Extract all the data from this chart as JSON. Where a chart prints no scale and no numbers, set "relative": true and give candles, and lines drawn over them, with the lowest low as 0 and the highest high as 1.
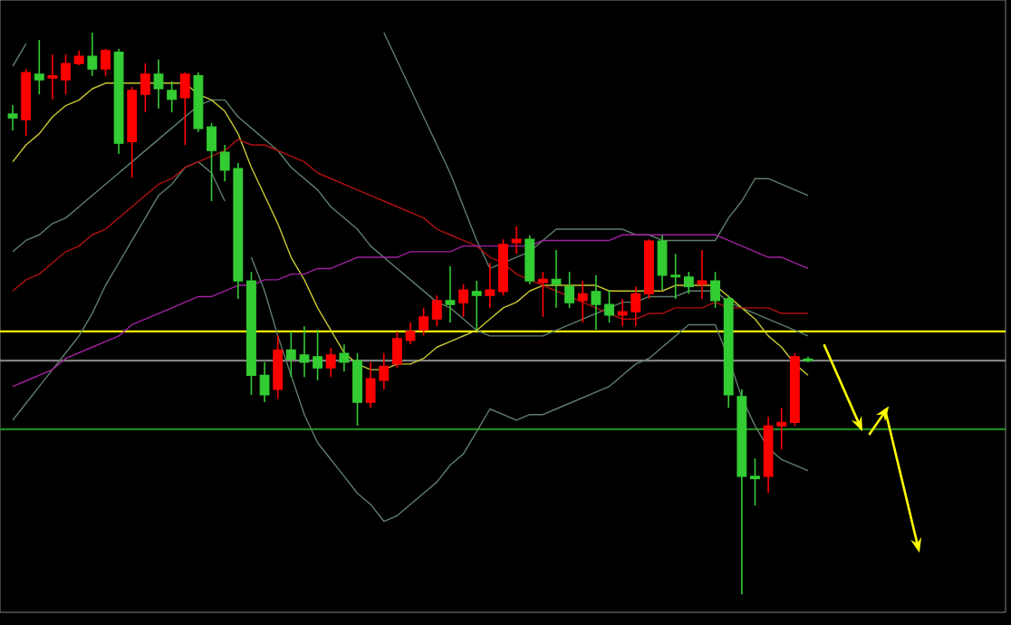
{
  "chart_data": {
    "type": "candlestick",
    "relative": true,
    "categories": [
      null,
      null,
      null,
      null,
      null,
      null,
      null,
      null,
      null,
      null,
      null,
      null,
      null,
      null,
      null,
      null,
      null,
      null,
      null,
      null,
      null,
      null,
      null,
      null,
      null,
      null,
      null,
      null,
      null,
      null,
      null,
      null,
      null,
      null,
      null,
      null,
      null,
      null,
      null,
      null,
      null,
      null,
      null,
      null,
      null,
      null,
      null,
      null,
      null,
      null,
      null,
      null,
      null,
      null,
      null,
      null,
      null,
      null,
      null,
      null,
      null
    ],
    "ohlc": [
      [
        0.855,
        0.871,
        0.826,
        0.848
      ],
      [
        0.845,
        0.935,
        0.816,
        0.929
      ],
      [
        0.926,
        0.987,
        0.89,
        0.916
      ],
      [
        0.919,
        0.961,
        0.881,
        0.923
      ],
      [
        0.916,
        0.961,
        0.89,
        0.945
      ],
      [
        0.945,
        0.968,
        0.942,
        0.958
      ],
      [
        0.958,
        1,
        0.923,
        0.935
      ],
      [
        0.935,
        0.971,
        0.923,
        0.968
      ],
      [
        0.965,
        0.971,
        0.784,
        0.803
      ],
      [
        0.806,
        0.903,
        0.742,
        0.897
      ],
      [
        0.89,
        0.945,
        0.858,
        0.926
      ],
      [
        0.926,
        0.952,
        0.865,
        0.9
      ],
      [
        0.897,
        0.913,
        0.858,
        0.881
      ],
      [
        0.884,
        0.929,
        0.8,
        0.926
      ],
      [
        0.923,
        0.929,
        0.823,
        0.829
      ],
      [
        0.832,
        0.839,
        0.7,
        0.79
      ],
      [
        0.787,
        0.8,
        0.735,
        0.755
      ],
      [
        0.758,
        0.768,
        0.526,
        0.558
      ],
      [
        0.558,
        0.574,
        0.355,
        0.39
      ],
      [
        0.39,
        0.413,
        0.342,
        0.355
      ],
      [
        0.365,
        0.461,
        0.348,
        0.435
      ],
      [
        0.435,
        0.468,
        0.387,
        0.419
      ],
      [
        0.426,
        0.477,
        0.387,
        0.413
      ],
      [
        0.423,
        0.471,
        0.381,
        0.403
      ],
      [
        0.403,
        0.439,
        0.387,
        0.426
      ],
      [
        0.429,
        0.445,
        0.397,
        0.413
      ],
      [
        0.416,
        0.429,
        0.3,
        0.342
      ],
      [
        0.342,
        0.413,
        0.332,
        0.384
      ],
      [
        0.381,
        0.429,
        0.365,
        0.406
      ],
      [
        0.41,
        0.468,
        0.403,
        0.455
      ],
      [
        0.452,
        0.484,
        0.445,
        0.468
      ],
      [
        0.471,
        0.51,
        0.461,
        0.494
      ],
      [
        0.49,
        0.532,
        0.477,
        0.523
      ],
      [
        0.523,
        0.584,
        0.484,
        0.516
      ],
      [
        0.519,
        0.552,
        0.494,
        0.542
      ],
      [
        0.539,
        0.558,
        0.471,
        0.532
      ],
      [
        0.532,
        0.59,
        0.51,
        0.542
      ],
      [
        0.539,
        0.632,
        0.532,
        0.623
      ],
      [
        0.626,
        0.655,
        0.606,
        0.632
      ],
      [
        0.632,
        0.639,
        0.552,
        0.558
      ],
      [
        0.555,
        0.574,
        0.494,
        0.561
      ],
      [
        0.561,
        0.613,
        0.51,
        0.552
      ],
      [
        0.548,
        0.574,
        0.51,
        0.519
      ],
      [
        0.523,
        0.558,
        0.484,
        0.535
      ],
      [
        0.539,
        0.568,
        0.471,
        0.516
      ],
      [
        0.516,
        0.542,
        0.484,
        0.497
      ],
      [
        0.497,
        0.526,
        0.477,
        0.503
      ],
      [
        0.503,
        0.548,
        0.477,
        0.535
      ],
      [
        0.535,
        0.632,
        0.526,
        0.629
      ],
      [
        0.629,
        0.639,
        0.542,
        0.568
      ],
      [
        0.568,
        0.606,
        0.526,
        0.565
      ],
      [
        0.565,
        0.574,
        0.535,
        0.548
      ],
      [
        0.552,
        0.613,
        0.526,
        0.558
      ],
      [
        0.558,
        0.574,
        0.51,
        0.523
      ],
      [
        0.526,
        0.532,
        0.332,
        0.355
      ],
      [
        0.352,
        0.365,
        0,
        0.21
      ],
      [
        0.21,
        0.242,
        0.158,
        0.206
      ],
      [
        0.21,
        0.316,
        0.181,
        0.3
      ],
      [
        0.3,
        0.332,
        0.258,
        0.306
      ],
      [
        0.306,
        0.429,
        0.3,
        0.423
      ],
      [
        0.419,
        0.423,
        0.413,
        0.416
      ]
    ],
    "colors": [
      "#33cc33",
      "#ff0000",
      "#33cc33",
      "#ff0000",
      "#ff0000",
      "#ff0000",
      "#33cc33",
      "#ff0000",
      "#33cc33",
      "#ff0000",
      "#ff0000",
      "#33cc33",
      "#33cc33",
      "#ff0000",
      "#33cc33",
      "#33cc33",
      "#33cc33",
      "#33cc33",
      "#33cc33",
      "#33cc33",
      "#ff0000",
      "#33cc33",
      "#33cc33",
      "#33cc33",
      "#ff0000",
      "#33cc33",
      "#33cc33",
      "#ff0000",
      "#ff0000",
      "#ff0000",
      "#ff0000",
      "#ff0000",
      "#ff0000",
      "#33cc33",
      "#ff0000",
      "#33cc33",
      "#ff0000",
      "#ff0000",
      "#ff0000",
      "#33cc33",
      "#ff0000",
      "#33cc33",
      "#33cc33",
      "#ff0000",
      "#33cc33",
      "#33cc33",
      "#ff0000",
      "#ff0000",
      "#ff0000",
      "#33cc33",
      "#33cc33",
      "#33cc33",
      "#ff0000",
      "#33cc33",
      "#33cc33",
      "#33cc33",
      "#33cc33",
      "#ff0000",
      "#ff0000",
      "#ff0000",
      "#33cc33"
    ],
    "series": [
      {
        "type": "line",
        "color": "#5f7f6a",
        "values": [
          0.94,
          0.98,
          null,
          null,
          null,
          null,
          null,
          null,
          null,
          null,
          null,
          null,
          null,
          null,
          null,
          null,
          null,
          null,
          null,
          null,
          null,
          null,
          null,
          null,
          null,
          null,
          null,
          null,
          1.0,
          0.95,
          0.9,
          0.85,
          0.8,
          0.75,
          0.69,
          0.63,
          0.58,
          0.59,
          0.6,
          0.61,
          0.63,
          0.65,
          0.65,
          0.65,
          0.65,
          0.65,
          0.65,
          0.64,
          0.64,
          0.63,
          0.63,
          0.63,
          0.63,
          0.63,
          0.67,
          0.7,
          0.74,
          0.74,
          0.73,
          0.72,
          0.71
        ]
      },
      {
        "type": "line",
        "color": "#5f7f6a",
        "values": [
          0.61,
          0.63,
          0.64,
          0.66,
          0.67,
          0.69,
          0.71,
          0.73,
          0.75,
          0.77,
          0.79,
          0.81,
          0.83,
          0.85,
          0.87,
          0.88,
          0.88,
          0.85,
          0.83,
          0.81,
          0.79,
          0.76,
          0.74,
          0.72,
          0.69,
          0.67,
          0.65,
          0.62,
          0.6,
          0.58,
          0.56,
          0.54,
          0.52,
          0.51,
          0.49,
          0.47,
          0.46,
          0.46,
          0.46,
          0.46,
          0.46,
          0.47,
          0.48,
          0.49,
          0.5,
          0.51,
          0.52,
          0.52,
          0.53,
          0.53,
          0.53,
          0.54,
          0.54,
          0.54,
          0.52,
          0.51,
          0.5,
          0.49,
          0.48,
          0.47,
          0.46
        ]
      },
      {
        "type": "line",
        "color": "#5f7f6a",
        "values": [
          0.31,
          0.34,
          0.37,
          0.4,
          0.43,
          0.46,
          0.5,
          0.55,
          0.59,
          0.63,
          0.67,
          0.71,
          0.73,
          0.76,
          0.77,
          0.75,
          0.7,
          null,
          0.6,
          0.54,
          0.46,
          0.39,
          0.32,
          0.27,
          0.24,
          0.21,
          0.18,
          0.16,
          0.13,
          0.14,
          0.16,
          0.18,
          0.2,
          0.23,
          0.25,
          0.29,
          0.33,
          0.32,
          0.31,
          0.32,
          0.32,
          0.33,
          0.34,
          0.35,
          0.36,
          0.37,
          0.39,
          0.41,
          0.42,
          0.44,
          0.46,
          0.48,
          0.48,
          0.48,
          0.42,
          0.35,
          0.3,
          0.26,
          0.24,
          0.23,
          0.22
        ]
      },
      {
        "type": "line",
        "color": "#c8c832",
        "values": [
          0.77,
          0.8,
          0.82,
          0.85,
          0.87,
          0.88,
          0.9,
          0.91,
          0.91,
          0.91,
          0.91,
          0.91,
          0.91,
          0.91,
          0.89,
          0.88,
          0.86,
          0.82,
          0.76,
          0.71,
          0.66,
          0.6,
          0.56,
          0.51,
          0.47,
          0.43,
          0.41,
          0.4,
          0.4,
          0.41,
          0.41,
          0.42,
          0.44,
          0.45,
          0.46,
          0.47,
          0.49,
          0.51,
          0.52,
          0.54,
          0.55,
          0.55,
          0.55,
          0.55,
          0.55,
          0.54,
          0.54,
          0.54,
          0.54,
          0.54,
          0.55,
          0.55,
          0.55,
          0.55,
          0.53,
          0.51,
          0.49,
          0.46,
          0.44,
          0.41,
          0.39
        ]
      },
      {
        "type": "line",
        "color": "#b01010",
        "values": [
          0.54,
          0.56,
          0.57,
          0.59,
          0.61,
          0.62,
          0.64,
          0.65,
          0.67,
          0.69,
          0.71,
          0.73,
          0.74,
          0.76,
          0.77,
          0.78,
          0.79,
          0.81,
          0.8,
          0.8,
          0.79,
          0.78,
          0.77,
          0.75,
          0.74,
          0.73,
          0.72,
          0.71,
          0.7,
          0.69,
          0.68,
          0.67,
          0.65,
          0.64,
          0.63,
          0.62,
          0.6,
          0.59,
          0.57,
          0.56,
          0.55,
          0.54,
          0.53,
          0.52,
          0.51,
          0.5,
          0.49,
          0.49,
          0.5,
          0.5,
          0.51,
          0.51,
          0.51,
          0.52,
          0.51,
          0.51,
          0.51,
          0.51,
          0.5,
          0.5,
          0.5
        ]
      },
      {
        "type": "line",
        "color": "#a020a0",
        "values": [
          0.37,
          0.38,
          0.39,
          0.4,
          0.42,
          0.43,
          0.44,
          0.45,
          0.46,
          0.48,
          0.49,
          0.5,
          0.51,
          0.52,
          0.53,
          0.53,
          0.54,
          0.55,
          0.55,
          0.56,
          0.56,
          0.57,
          0.57,
          0.58,
          0.58,
          0.59,
          0.6,
          0.6,
          0.6,
          0.6,
          0.61,
          0.61,
          0.61,
          0.61,
          0.62,
          0.62,
          0.62,
          0.62,
          0.62,
          0.62,
          0.63,
          0.63,
          0.63,
          0.63,
          0.63,
          0.63,
          0.64,
          0.64,
          0.64,
          0.64,
          0.64,
          0.64,
          0.64,
          0.64,
          0.63,
          0.62,
          0.61,
          0.6,
          0.6,
          0.59,
          0.58
        ]
      }
    ],
    "ref_lines": [
      {
        "axis": "y",
        "value": 0.468,
        "color": "#ffff00"
      },
      {
        "axis": "y",
        "value": 0.416,
        "color": "#808080"
      },
      {
        "axis": "y",
        "value": 0.294,
        "color": "#1f8a1f"
      }
    ]
  }
}
